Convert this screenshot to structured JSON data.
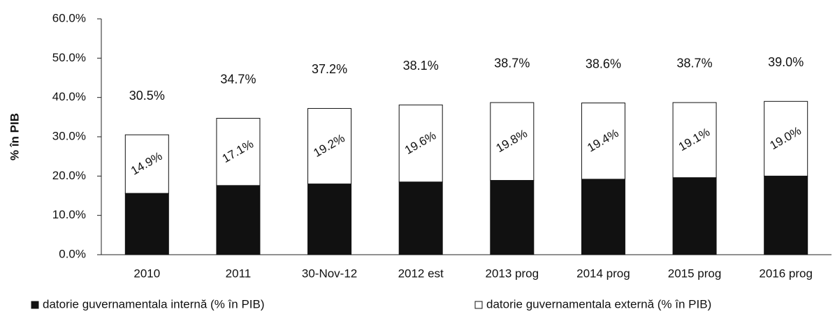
{
  "chart_data": {
    "type": "stacked_bar",
    "y_label": "% în PIB",
    "categories": [
      "2010",
      "2011",
      "30-Nov-12",
      "2012 est",
      "2013 prog",
      "2014 prog",
      "2015 prog",
      "2016 prog"
    ],
    "series": [
      {
        "name": "datorie guvernamentala internă (% în PIB)",
        "color": "#111111",
        "values": [
          15.6,
          17.6,
          18.0,
          18.5,
          18.9,
          19.2,
          19.6,
          20.0
        ]
      },
      {
        "name": "datorie guvernamentala externă (% în PIB)",
        "color": "#ffffff",
        "values": [
          14.9,
          17.1,
          19.2,
          19.6,
          19.8,
          19.4,
          19.1,
          19.0
        ],
        "value_labels": [
          "14.9%",
          "17.1%",
          "19.2%",
          "19.6%",
          "19.8%",
          "19.4%",
          "19.1%",
          "19.0%"
        ]
      }
    ],
    "totals": [
      30.5,
      34.7,
      37.2,
      38.1,
      38.7,
      38.6,
      38.7,
      39.0
    ],
    "total_labels": [
      "30.5%",
      "34.7%",
      "37.2%",
      "38.1%",
      "38.7%",
      "38.6%",
      "38.7%",
      "39.0%"
    ],
    "ylim": [
      0,
      60
    ],
    "yticks": [
      {
        "value": 0,
        "label": "0.0%"
      },
      {
        "value": 10,
        "label": "10.0%"
      },
      {
        "value": 20,
        "label": "20.0%"
      },
      {
        "value": 30,
        "label": "30.0%"
      },
      {
        "value": 40,
        "label": "40.0%"
      },
      {
        "value": 50,
        "label": "50.0%"
      },
      {
        "value": 60,
        "label": "60.0%"
      }
    ],
    "legend": "bottom"
  }
}
